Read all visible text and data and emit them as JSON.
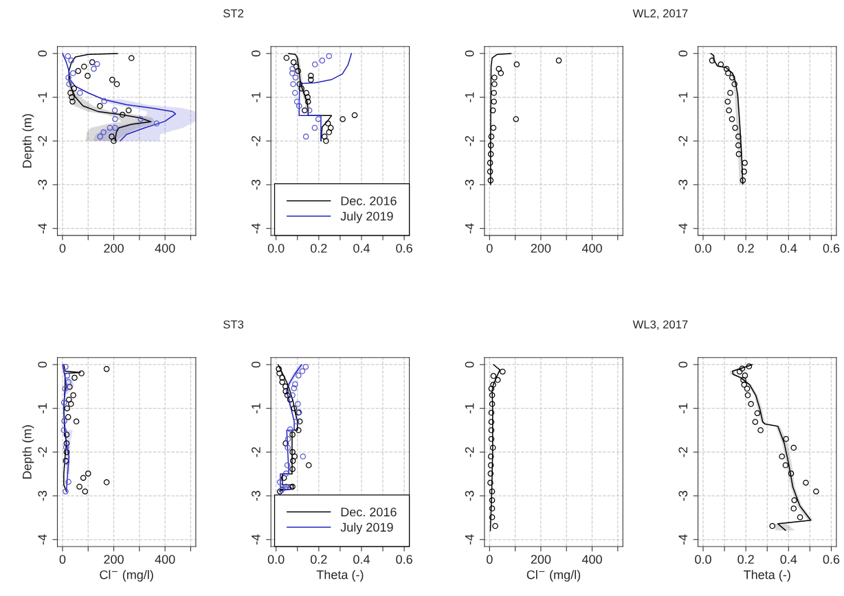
{
  "chart_data": [
    {
      "type": "line",
      "annotations": [
        "ST2"
      ],
      "ylabel": "Depth (m)",
      "orientation": "horizontal",
      "grid": true,
      "xlim": [
        -20,
        520
      ],
      "ylim": [
        -4.16,
        0.16
      ],
      "xticks": [
        0,
        {
          "value": 100,
          "label": null
        },
        200,
        {
          "value": 300,
          "label": null
        },
        400,
        {
          "value": 500,
          "label": null
        }
      ],
      "yticks": [
        0,
        -1,
        -2,
        -3,
        -4
      ],
      "series": [
        {
          "color": "#000000",
          "x": [
            0,
            -0.02,
            -0.08,
            -0.2,
            -0.4,
            -0.6,
            -0.8,
            -1.0,
            -1.2,
            -1.33,
            -1.4,
            -1.47,
            -1.56,
            -1.62,
            -1.7,
            -1.8,
            -2.0
          ],
          "values": [
            215,
            100,
            50,
            35,
            25,
            25,
            35,
            50,
            80,
            140,
            230,
            300,
            345,
            270,
            220,
            210,
            205
          ],
          "lower": [
            null,
            null,
            null,
            null,
            null,
            20,
            25,
            30,
            45,
            100,
            170,
            210,
            230,
            170,
            110,
            95,
            90
          ],
          "upper": [
            null,
            null,
            null,
            null,
            null,
            30,
            45,
            70,
            120,
            190,
            290,
            350,
            360,
            350,
            300,
            260,
            210
          ]
        },
        {
          "color": "#2020c0",
          "x": [
            0,
            -0.2,
            -0.4,
            -0.6,
            -0.75,
            -0.9,
            -1.05,
            -1.17,
            -1.25,
            -1.33,
            -1.38,
            -1.55,
            -1.7,
            -1.85,
            -2.0
          ],
          "values": [
            0,
            15,
            25,
            30,
            50,
            100,
            160,
            250,
            350,
            430,
            441,
            400,
            320,
            250,
            225
          ],
          "lower": [
            null,
            null,
            null,
            null,
            null,
            null,
            140,
            200,
            280,
            330,
            330,
            300,
            180,
            130,
            120
          ],
          "upper": [
            null,
            null,
            null,
            null,
            null,
            null,
            230,
            330,
            470,
            520,
            520,
            520,
            470,
            380,
            380
          ]
        },
        {
          "type": "scatter",
          "marker": "circle",
          "color": "#000000",
          "x": [
            -0.105,
            -0.2,
            -0.3,
            -0.4,
            -0.51,
            -0.6,
            -0.7,
            -0.8,
            -0.9,
            -1.0,
            -1.1,
            -1.2,
            -1.3,
            -1.4,
            -1.9,
            -2.0
          ],
          "values": [
            269,
            116,
            84,
            61,
            98,
            194,
            212,
            45,
            31,
            36,
            39,
            146,
            258,
            234,
            192,
            200
          ]
        },
        {
          "type": "scatter",
          "marker": "circle",
          "color": "#5555cc",
          "x": [
            -0.06,
            -0.16,
            -0.24,
            -0.35,
            -0.45,
            -0.55,
            -0.7,
            -0.9,
            -1.09,
            -1.3,
            -1.5,
            -1.5,
            -1.6,
            -1.7,
            -1.7,
            -1.8,
            -1.9
          ],
          "values": [
            21,
            34,
            135,
            122,
            41,
            23,
            26,
            68,
            163,
            204,
            205,
            305,
            367,
            185,
            205,
            160,
            147
          ]
        }
      ]
    },
    {
      "type": "line",
      "orientation": "horizontal",
      "grid": true,
      "legend": "bottom right",
      "xlim": [
        -0.024,
        0.624
      ],
      "ylim": [
        -4.16,
        0.16
      ],
      "xticks": [
        {
          "value": 0,
          "label": "0.0"
        },
        {
          "value": 0.1,
          "label": null
        },
        {
          "value": 0.2,
          "label": "0.2"
        },
        {
          "value": 0.3,
          "label": null
        },
        {
          "value": 0.4,
          "label": "0.4"
        },
        {
          "value": 0.5,
          "label": null
        },
        {
          "value": 0.6,
          "label": "0.6"
        }
      ],
      "yticks": [
        0,
        -1,
        -2,
        -3,
        -4
      ],
      "series": [
        {
          "name": "Dec. 2016",
          "color": "#000000",
          "x": [
            0,
            -0.02,
            -0.1,
            -0.3,
            -0.5,
            -0.7,
            -0.9,
            -1.1,
            -1.3,
            -1.42,
            -1.42,
            -1.55,
            -1.68,
            -2.0
          ],
          "values": [
            0.058,
            0.09,
            0.1,
            0.105,
            0.11,
            0.115,
            0.13,
            0.145,
            0.15,
            0.15,
            0.26,
            0.24,
            0.216,
            0.21
          ],
          "lower": [
            null,
            null,
            0.09,
            0.095,
            0.1,
            0.105,
            0.12,
            0.135,
            0.14,
            null,
            null,
            null,
            null,
            null
          ],
          "upper": [
            null,
            null,
            0.11,
            0.115,
            0.12,
            0.125,
            0.14,
            0.155,
            0.16,
            null,
            null,
            null,
            null,
            null
          ]
        },
        {
          "name": "July 2019",
          "color": "#2020c0",
          "x": [
            0,
            -0.26,
            -0.47,
            -0.6,
            -0.67,
            -0.69,
            -1.42,
            -1.42,
            -2.0
          ],
          "values": [
            0.353,
            0.337,
            0.31,
            0.258,
            0.184,
            0.11,
            0.108,
            0.21,
            0.21
          ]
        },
        {
          "type": "scatter",
          "marker": "circle",
          "color": "#000000",
          "x": [
            -0.1,
            -0.2,
            -0.3,
            -0.4,
            -0.51,
            -0.6,
            -0.7,
            -0.8,
            -0.9,
            -1.0,
            -1.1,
            -1.3,
            -1.41,
            -1.5,
            -1.6,
            -1.7,
            -1.8,
            -1.9,
            -2.0
          ],
          "values": [
            0.049,
            0.082,
            0.095,
            0.103,
            0.163,
            0.163,
            0.11,
            0.119,
            0.142,
            0.148,
            0.15,
            0.134,
            0.368,
            0.312,
            0.243,
            0.256,
            0.248,
            0.227,
            0.234
          ]
        },
        {
          "type": "scatter",
          "marker": "circle",
          "color": "#5555cc",
          "x": [
            -0.06,
            -0.16,
            -0.25,
            -0.35,
            -0.45,
            -0.55,
            -0.7,
            -0.9,
            -1.1,
            -1.2,
            -1.3,
            -1.5,
            -1.7,
            -1.9
          ],
          "values": [
            0.248,
            0.216,
            0.182,
            0.077,
            0.076,
            0.091,
            0.08,
            0.089,
            0.098,
            0.108,
            0.156,
            0.198,
            0.181,
            0.14
          ]
        }
      ]
    },
    {
      "type": "line",
      "annotations": [
        "WL2, 2017"
      ],
      "orientation": "horizontal",
      "grid": true,
      "xlim": [
        -20,
        520
      ],
      "ylim": [
        -4.16,
        0.16
      ],
      "xticks": [
        0,
        {
          "value": 100,
          "label": null
        },
        200,
        {
          "value": 300,
          "label": null
        },
        400,
        {
          "value": 500,
          "label": null
        }
      ],
      "yticks": [
        0,
        -1,
        -2,
        -3,
        -4
      ],
      "series": [
        {
          "color": "#000000",
          "x": [
            0,
            -0.02,
            -0.1,
            -0.3,
            -1,
            -2,
            -3
          ],
          "values": [
            84,
            30,
            10,
            6,
            5,
            4,
            4
          ]
        },
        {
          "type": "scatter",
          "marker": "circle",
          "color": "#000000",
          "x": [
            -0.16,
            -0.25,
            -0.35,
            -0.45,
            -0.55,
            -0.7,
            -0.9,
            -1.1,
            -1.3,
            -1.5,
            -1.7,
            -1.9,
            -2.1,
            -2.3,
            -2.5,
            -2.7,
            -2.9
          ],
          "values": [
            270,
            106,
            36,
            44,
            19,
            19,
            17,
            17,
            13,
            103,
            15,
            7,
            5,
            5,
            2,
            2,
            4
          ]
        }
      ]
    },
    {
      "type": "line",
      "orientation": "horizontal",
      "grid": true,
      "xlim": [
        -0.024,
        0.624
      ],
      "ylim": [
        -4.16,
        0.16
      ],
      "xticks": [
        {
          "value": 0,
          "label": "0.0"
        },
        {
          "value": 0.1,
          "label": null
        },
        {
          "value": 0.2,
          "label": "0.2"
        },
        {
          "value": 0.3,
          "label": null
        },
        {
          "value": 0.4,
          "label": "0.4"
        },
        {
          "value": 0.5,
          "label": null
        },
        {
          "value": 0.6,
          "label": "0.6"
        }
      ],
      "yticks": [
        0,
        -1,
        -2,
        -3,
        -4
      ],
      "series": [
        {
          "color": "#000000",
          "x": [
            0,
            -0.05,
            -0.15,
            -0.29,
            -0.32,
            -0.45,
            -0.64,
            -0.95,
            -1.58,
            -2.21,
            -2.99
          ],
          "values": [
            0.036,
            0.05,
            0.05,
            0.068,
            0.106,
            0.138,
            0.151,
            0.162,
            0.171,
            0.179,
            0.186
          ],
          "lower": [
            null,
            0.04,
            0.04,
            0.06,
            0.1,
            0.13,
            0.14,
            0.148,
            0.155,
            0.163,
            0.17
          ],
          "upper": [
            null,
            0.055,
            0.055,
            0.07,
            0.108,
            0.14,
            0.153,
            0.165,
            0.174,
            0.182,
            0.189
          ]
        },
        {
          "type": "scatter",
          "marker": "circle",
          "color": "#000000",
          "x": [
            -0.16,
            -0.25,
            -0.35,
            -0.45,
            -0.55,
            -0.7,
            -0.9,
            -1.1,
            -1.3,
            -1.5,
            -1.7,
            -1.9,
            -2.1,
            -2.3,
            -2.5,
            -2.7,
            -2.9
          ],
          "values": [
            0.042,
            0.083,
            0.11,
            0.117,
            0.136,
            0.147,
            0.127,
            0.115,
            0.121,
            0.135,
            0.15,
            0.165,
            0.165,
            0.167,
            0.195,
            0.192,
            0.186
          ]
        }
      ]
    },
    {
      "type": "line",
      "annotations": [
        "ST3"
      ],
      "ylabel": "Depth (m)",
      "xlabel": "Cl$^{−}$ (mg/l)",
      "orientation": "horizontal",
      "grid": true,
      "xlim": [
        -20,
        520
      ],
      "ylim": [
        -4.16,
        0.16
      ],
      "xticks": [
        0,
        {
          "value": 100,
          "label": null
        },
        200,
        {
          "value": 300,
          "label": null
        },
        400,
        {
          "value": 500,
          "label": null
        }
      ],
      "yticks": [
        0,
        -1,
        -2,
        -3,
        -4
      ],
      "series": [
        {
          "color": "#000000",
          "x": [
            0,
            -0.15,
            -0.18,
            -0.2,
            -0.5,
            -1.0,
            -1.5,
            -1.8,
            -2.1,
            -2.5,
            -2.75,
            -2.91
          ],
          "values": [
            5,
            10,
            70,
            10,
            10,
            5,
            8,
            15,
            10,
            5,
            5,
            16
          ]
        },
        {
          "color": "#2020c0",
          "x": [
            0,
            -0.3,
            -0.5,
            -0.7,
            -1.0,
            -1.5,
            -1.8,
            -2.1,
            -2.5,
            -2.9
          ],
          "values": [
            0,
            10,
            15,
            8,
            5,
            10,
            15,
            25,
            20,
            15
          ],
          "lower": [
            null,
            5,
            10,
            3,
            null,
            8,
            10,
            15,
            12,
            null
          ],
          "upper": [
            null,
            40,
            45,
            15,
            null,
            40,
            30,
            30,
            28,
            null
          ]
        },
        {
          "type": "scatter",
          "marker": "circle",
          "color": "#000000",
          "x": [
            -0.1,
            -0.2,
            -0.3,
            -0.51,
            -0.7,
            -0.8,
            -0.9,
            -1.0,
            -1.2,
            -1.3,
            -1.6,
            -1.8,
            -2.0,
            -2.2,
            -2.49,
            -2.59,
            -2.69,
            -2.79,
            -2.9
          ],
          "values": [
            172,
            74,
            47,
            28,
            42,
            25,
            33,
            18,
            22,
            54,
            16,
            16,
            16,
            13,
            100,
            81,
            172,
            66,
            88
          ]
        },
        {
          "type": "scatter",
          "marker": "circle",
          "color": "#5555cc",
          "x": [
            -0.05,
            -0.25,
            -0.4,
            -0.55,
            -0.87,
            -1.29,
            -1.5,
            -1.89,
            -2.22,
            -2.68,
            -2.9
          ],
          "values": [
            12,
            18,
            23,
            10,
            6,
            7,
            5,
            14,
            16,
            23,
            12
          ]
        }
      ]
    },
    {
      "type": "line",
      "xlabel": "Theta (-)",
      "orientation": "horizontal",
      "grid": true,
      "legend": "bottom right",
      "xlim": [
        -0.024,
        0.624
      ],
      "ylim": [
        -4.16,
        0.16
      ],
      "xticks": [
        {
          "value": 0,
          "label": "0.0"
        },
        {
          "value": 0.1,
          "label": null
        },
        {
          "value": 0.2,
          "label": "0.2"
        },
        {
          "value": 0.3,
          "label": null
        },
        {
          "value": 0.4,
          "label": "0.4"
        },
        {
          "value": 0.5,
          "label": null
        },
        {
          "value": 0.6,
          "label": "0.6"
        }
      ],
      "yticks": [
        0,
        -1,
        -2,
        -3,
        -4
      ],
      "series": [
        {
          "name": "Dec. 2016",
          "color": "#000000",
          "x": [
            0,
            -0.1,
            -0.25,
            -0.4,
            -0.6,
            -0.85,
            -1.1,
            -1.3,
            -1.5,
            -1.5,
            -2.5,
            -2.5,
            -2.75,
            -2.75,
            -2.85,
            -2.85,
            -2.9
          ],
          "values": [
            0.01,
            0.02,
            0.035,
            0.05,
            0.065,
            0.08,
            0.09,
            0.1,
            0.1,
            0.075,
            0.075,
            0.03,
            0.03,
            0.08,
            0.08,
            0.02,
            0.02
          ]
        },
        {
          "name": "July 2019",
          "color": "#2020c0",
          "x": [
            0,
            -0.2,
            -0.45,
            -0.6,
            -0.8,
            -1.0,
            -1.3,
            -1.5,
            -1.5,
            -2.5,
            -2.5,
            -2.8,
            -2.8,
            -2.85,
            -2.88
          ],
          "values": [
            0.12,
            0.09,
            0.06,
            0.05,
            0.06,
            0.07,
            0.085,
            0.085,
            0.05,
            0.06,
            0.02,
            0.02,
            0.07,
            0.07,
            0.02
          ],
          "lower": [
            0.11,
            0.08,
            0.05,
            0.042,
            0.052,
            0.062,
            null,
            null,
            null,
            null,
            null,
            null,
            null,
            null,
            null
          ],
          "upper": [
            0.13,
            0.1,
            0.07,
            0.058,
            0.068,
            0.078,
            null,
            null,
            null,
            null,
            null,
            null,
            null,
            null,
            null
          ]
        },
        {
          "type": "scatter",
          "marker": "circle",
          "color": "#000000",
          "x": [
            -0.1,
            -0.2,
            -0.3,
            -0.4,
            -0.5,
            -0.61,
            -0.7,
            -0.8,
            -1.0,
            -1.1,
            -1.3,
            -1.5,
            -1.6,
            -1.8,
            -2.0,
            -2.1,
            -2.2,
            -2.3,
            -2.39,
            -2.59,
            -2.79,
            -2.9
          ],
          "values": [
            0.013,
            0.016,
            0.029,
            0.029,
            0.044,
            0.045,
            0.053,
            0.066,
            0.084,
            0.105,
            0.111,
            0.105,
            0.077,
            0.045,
            0.077,
            0.087,
            0.079,
            0.153,
            0.077,
            0.037,
            0.077,
            0.018
          ]
        },
        {
          "type": "scatter",
          "marker": "circle",
          "color": "#5555cc",
          "x": [
            -0.05,
            -0.15,
            -0.25,
            -0.45,
            -0.54,
            -0.7,
            -0.9,
            -1.09,
            -1.3,
            -1.48,
            -1.7,
            -1.9,
            -2.1,
            -2.3,
            -2.49,
            -2.69,
            -2.79,
            -2.87
          ],
          "values": [
            0.139,
            0.123,
            0.105,
            0.089,
            0.084,
            0.077,
            0.102,
            0.108,
            0.095,
            0.066,
            0.056,
            0.055,
            0.126,
            0.053,
            0.047,
            0.018,
            0.047,
            0.026
          ]
        }
      ]
    },
    {
      "type": "line",
      "annotations": [
        "WL3, 2017"
      ],
      "xlabel": "Cl$^{−}$ (mg/l)",
      "orientation": "horizontal",
      "grid": true,
      "xlim": [
        -20,
        520
      ],
      "ylim": [
        -4.16,
        0.16
      ],
      "xticks": [
        0,
        {
          "value": 100,
          "label": null
        },
        200,
        {
          "value": 300,
          "label": null
        },
        400,
        {
          "value": 500,
          "label": null
        }
      ],
      "yticks": [
        0,
        -1,
        -2,
        -3,
        -4
      ],
      "series": [
        {
          "color": "#000000",
          "x": [
            0,
            -0.12,
            -0.45,
            -0.6,
            -1,
            -2,
            -2.5,
            -3,
            -3.5,
            -3.8
          ],
          "values": [
            15,
            40,
            15,
            10,
            12,
            12,
            10,
            8,
            5,
            3
          ]
        },
        {
          "type": "scatter",
          "marker": "circle",
          "color": "#000000",
          "x": [
            -0.16,
            -0.26,
            -0.35,
            -0.46,
            -0.55,
            -0.7,
            -0.9,
            -1.1,
            -1.31,
            -1.5,
            -1.7,
            -1.9,
            -2.1,
            -2.3,
            -2.49,
            -2.7,
            -2.9,
            -3.1,
            -3.29,
            -3.49,
            -3.69
          ],
          "values": [
            51,
            15,
            32,
            14,
            7,
            10,
            10,
            7,
            7,
            7,
            7,
            13,
            5,
            5,
            4,
            3,
            10,
            10,
            10,
            10,
            22
          ]
        }
      ]
    },
    {
      "type": "line",
      "xlabel": "Theta (-)",
      "orientation": "horizontal",
      "grid": true,
      "xlim": [
        -0.024,
        0.624
      ],
      "ylim": [
        -4.16,
        0.16
      ],
      "xticks": [
        {
          "value": 0,
          "label": "0.0"
        },
        {
          "value": 0.1,
          "label": null
        },
        {
          "value": 0.2,
          "label": "0.2"
        },
        {
          "value": 0.3,
          "label": null
        },
        {
          "value": 0.4,
          "label": "0.4"
        },
        {
          "value": 0.5,
          "label": null
        },
        {
          "value": 0.6,
          "label": "0.6"
        }
      ],
      "yticks": [
        0,
        -1,
        -2,
        -3,
        -4
      ],
      "series": [
        {
          "color": "#000000",
          "x": [
            0,
            -0.05,
            -0.15,
            -0.22,
            -0.3,
            -0.46,
            -0.71,
            -1.0,
            -1.31,
            -1.36,
            -1.41,
            -1.8,
            -2.28,
            -2.8,
            -3.23,
            -3.56,
            -3.64,
            -3.79
          ],
          "values": [
            0.23,
            0.2,
            0.138,
            0.14,
            0.177,
            0.218,
            0.247,
            0.265,
            0.279,
            0.29,
            0.35,
            0.38,
            0.401,
            0.42,
            0.453,
            0.504,
            0.35,
            0.386
          ],
          "lower": [
            0.22,
            0.18,
            0.125,
            0.125,
            0.165,
            0.21,
            0.24,
            0.255,
            0.27,
            0.28,
            0.34,
            0.37,
            0.39,
            0.41,
            0.44,
            0.49,
            0.33,
            0.34
          ],
          "upper": [
            0.235,
            0.21,
            0.15,
            0.15,
            0.185,
            0.226,
            0.256,
            0.275,
            0.288,
            0.3,
            0.36,
            0.395,
            0.415,
            0.43,
            0.462,
            0.515,
            0.39,
            0.43
          ]
        },
        {
          "type": "scatter",
          "marker": "circle",
          "color": "#000000",
          "x": [
            -0.04,
            -0.09,
            -0.16,
            -0.25,
            -0.35,
            -0.46,
            -0.55,
            -0.7,
            -0.9,
            -1.11,
            -1.31,
            -1.5,
            -1.7,
            -1.9,
            -2.1,
            -2.3,
            -2.49,
            -2.7,
            -2.9,
            -3.1,
            -3.29,
            -3.49,
            -3.69
          ],
          "values": [
            0.215,
            0.183,
            0.171,
            0.196,
            0.188,
            0.192,
            0.206,
            0.209,
            0.224,
            0.254,
            0.244,
            0.269,
            0.388,
            0.424,
            0.369,
            0.386,
            0.412,
            0.481,
            0.529,
            0.427,
            0.424,
            0.454,
            0.324
          ]
        }
      ]
    }
  ]
}
